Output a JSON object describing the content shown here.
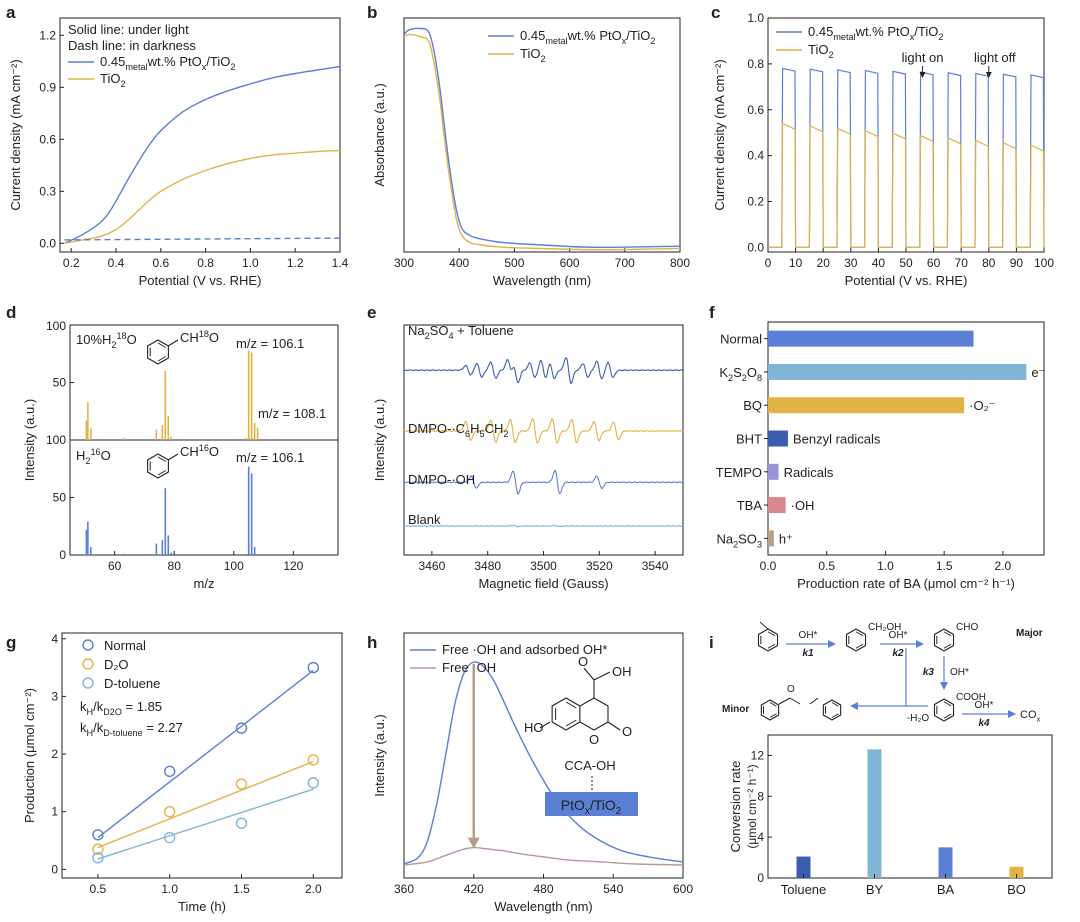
{
  "colors": {
    "blue": "#5b7fd4",
    "gold": "#e0b347",
    "light_blue": "#7fb6d5",
    "brown": "#b89a8e",
    "dark_blue": "#3a5db0",
    "pink": "#d9868c",
    "lavender": "#9b93d7",
    "tan": "#b79f8a",
    "red": "#d42020",
    "axis": "#222222"
  },
  "panel_labels": {
    "a": "a",
    "b": "b",
    "c": "c",
    "d": "d",
    "e": "e",
    "f": "f",
    "g": "g",
    "h": "h",
    "i": "i"
  },
  "chart_data": [
    {
      "panel": "a",
      "type": "line",
      "xlabel": "Potential (V vs. RHE)",
      "ylabel": "Current density (mA cm⁻²)",
      "xlim": [
        0.15,
        1.4
      ],
      "ylim": [
        -0.05,
        1.3
      ],
      "xticks": [
        0.2,
        0.4,
        0.6,
        0.8,
        1.0,
        1.2,
        1.4
      ],
      "yticks": [
        0.0,
        0.3,
        0.6,
        0.9,
        1.2
      ],
      "xtick_labels": [
        "0.2",
        "0.4",
        "0.6",
        "0.8",
        "1.0",
        "1.2",
        "1.4"
      ],
      "ytick_labels": [
        "0.0",
        "0.3",
        "0.6",
        "0.9",
        "1.2"
      ],
      "annotations": [
        "Solid line: under light",
        "Dash line: in darkness"
      ],
      "series": [
        {
          "name": "0.45metal wt.% PtOx/TiO2",
          "legend_main": "0.45",
          "legend_sub": "metal",
          "legend_rest": "wt.% PtO",
          "legend_sub2": "x",
          "legend_end": "/TiO",
          "legend_sub3": "2",
          "color": "blue",
          "style": "solid",
          "x": [
            0.17,
            0.25,
            0.33,
            0.38,
            0.45,
            0.5,
            0.55,
            0.6,
            0.7,
            0.8,
            0.9,
            1.0,
            1.1,
            1.2,
            1.3,
            1.4
          ],
          "y": [
            0.0,
            0.05,
            0.12,
            0.2,
            0.36,
            0.47,
            0.57,
            0.65,
            0.76,
            0.83,
            0.88,
            0.92,
            0.955,
            0.98,
            1.0,
            1.02
          ]
        },
        {
          "name": "TiO2",
          "legend_main": "TiO",
          "legend_sub": "2",
          "color": "gold",
          "style": "solid",
          "x": [
            0.17,
            0.25,
            0.33,
            0.4,
            0.45,
            0.5,
            0.55,
            0.6,
            0.7,
            0.8,
            0.9,
            1.0,
            1.1,
            1.2,
            1.3,
            1.4
          ],
          "y": [
            0.0,
            0.02,
            0.04,
            0.08,
            0.13,
            0.19,
            0.25,
            0.3,
            0.37,
            0.42,
            0.46,
            0.49,
            0.51,
            0.52,
            0.53,
            0.535
          ]
        },
        {
          "name": "dark",
          "color": "blue",
          "style": "dash",
          "x": [
            0.17,
            1.4
          ],
          "y": [
            0.02,
            0.03
          ]
        }
      ]
    },
    {
      "panel": "b",
      "type": "line",
      "xlabel": "Wavelength (nm)",
      "ylabel": "Absorbance (a.u.)",
      "xlim": [
        300,
        800
      ],
      "ylim": [
        0,
        1.0
      ],
      "xticks": [
        300,
        400,
        500,
        600,
        700,
        800
      ],
      "xtick_labels": [
        "300",
        "400",
        "500",
        "600",
        "700",
        "800"
      ],
      "series": [
        {
          "name": "0.45metal wt.% PtOx/TiO2",
          "legend_main": "0.45",
          "legend_sub": "metal",
          "legend_rest": "wt.% PtO",
          "legend_sub2": "x",
          "legend_end": "/TiO",
          "legend_sub3": "2",
          "color": "blue",
          "x": [
            300,
            310,
            330,
            345,
            355,
            365,
            375,
            385,
            395,
            405,
            420,
            440,
            480,
            550,
            650,
            800
          ],
          "y": [
            0.93,
            0.95,
            0.955,
            0.94,
            0.85,
            0.7,
            0.5,
            0.32,
            0.18,
            0.1,
            0.07,
            0.055,
            0.04,
            0.03,
            0.02,
            0.025
          ]
        },
        {
          "name": "TiO2",
          "legend_main": "TiO",
          "legend_sub": "2",
          "color": "gold",
          "x": [
            300,
            310,
            330,
            345,
            355,
            365,
            375,
            385,
            395,
            405,
            420,
            440,
            480,
            550,
            650,
            800
          ],
          "y": [
            0.92,
            0.93,
            0.92,
            0.9,
            0.8,
            0.65,
            0.45,
            0.28,
            0.14,
            0.07,
            0.04,
            0.03,
            0.02,
            0.015,
            0.01,
            0.015
          ]
        }
      ]
    },
    {
      "panel": "c",
      "type": "line",
      "xlabel": "Potential (V vs. RHE)",
      "ylabel": "Current density (mA cm⁻²)",
      "xlim": [
        0,
        100
      ],
      "ylim": [
        -0.02,
        1.0
      ],
      "xticks": [
        0,
        10,
        20,
        30,
        40,
        50,
        60,
        70,
        80,
        90,
        100
      ],
      "yticks": [
        0.0,
        0.2,
        0.4,
        0.6,
        0.8,
        1.0
      ],
      "xtick_labels": [
        "0",
        "10",
        "20",
        "30",
        "40",
        "50",
        "60",
        "70",
        "80",
        "90",
        "100"
      ],
      "ytick_labels": [
        "0.0",
        "0.2",
        "0.4",
        "0.6",
        "0.8",
        "1.0"
      ],
      "annotations": [
        "light on",
        "light off"
      ],
      "annotation_x": [
        56,
        80
      ],
      "pulse_on": [
        5,
        15,
        25,
        35,
        45,
        55,
        65,
        75,
        85,
        95
      ],
      "pulse_width": 4.8,
      "series": [
        {
          "name": "0.45metal wt.% PtOx/TiO2",
          "legend_main": "0.45",
          "legend_sub": "metal",
          "legend_rest": "wt.% PtO",
          "legend_sub2": "x",
          "legend_end": "/TiO",
          "legend_sub3": "2",
          "color": "blue",
          "x": [
            5,
            100
          ],
          "y": [
            0.77,
            0.74
          ]
        },
        {
          "name": "TiO2",
          "legend_main": "TiO",
          "legend_sub": "2",
          "color": "gold",
          "x": [
            5,
            100
          ],
          "y": [
            0.52,
            0.42
          ]
        }
      ]
    },
    {
      "panel": "d",
      "type": "bar",
      "xlabel": "m/z",
      "ylabel": "Intensity (a.u.)",
      "xlim": [
        45,
        135
      ],
      "ylim": [
        0,
        100
      ],
      "xticks": [
        60,
        80,
        100,
        120
      ],
      "xtick_labels": [
        "60",
        "80",
        "100",
        "120"
      ],
      "ytick_labels_top": [
        "100",
        "50",
        "100"
      ],
      "ytick_labels_bottom": [
        "50",
        "0"
      ],
      "annotations": [
        "m/z = 106.1",
        "m/z = 108.1",
        "m/z = 106.1"
      ],
      "top_label": {
        "pre": "10%H",
        "sub": "2",
        "sup": "18",
        "post": "O"
      },
      "bottom_label": {
        "pre": "H",
        "sub": "2",
        "sup": "16",
        "post": "O"
      },
      "top_struct_label": {
        "pre": "CH",
        "sup": "18",
        "post": "O"
      },
      "bottom_struct_label": {
        "pre": "CH",
        "sup": "16",
        "post": "O"
      },
      "series": [
        {
          "name": "10%H2 18O",
          "color": "gold",
          "x": [
            50.5,
            51.0,
            52.0,
            63.0,
            74.0,
            76.0,
            77.0,
            78.0,
            79.0,
            104.0,
            105.0,
            106.0,
            107.0,
            108.0
          ],
          "y": [
            17,
            33,
            10,
            2,
            9,
            13,
            60,
            21,
            3,
            2,
            78,
            76,
            15,
            11
          ]
        },
        {
          "name": "H2 16O",
          "color": "blue",
          "x": [
            50.5,
            51.0,
            52.0,
            63.0,
            74.0,
            76.0,
            77.0,
            78.0,
            79.0,
            105.0,
            106.0,
            107.0
          ],
          "y": [
            22,
            29,
            7,
            1,
            10,
            13,
            58,
            17,
            2,
            77,
            71,
            7
          ]
        }
      ]
    },
    {
      "panel": "e",
      "type": "line",
      "xlabel": "Magnetic field (Gauss)",
      "ylabel": "Intensity (a.u.)",
      "xlim": [
        3450,
        3550
      ],
      "xticks": [
        3460,
        3480,
        3500,
        3520,
        3540
      ],
      "xtick_labels": [
        "3460",
        "3480",
        "3500",
        "3520",
        "3540"
      ],
      "series_labels": [
        {
          "pre": "Na",
          "sub1": "2",
          "mid": "SO",
          "sub2": "4",
          "post": " + Toluene"
        },
        {
          "pre": "DMPO-·C",
          "sub1": "6",
          "mid": "H",
          "sub2": "5",
          "post": "CH",
          "sub3": "2"
        },
        {
          "pre": "DMPO-·OH"
        },
        {
          "pre": "Blank"
        }
      ],
      "series": [
        {
          "name": "Na2SO4 + Toluene",
          "color": "dark_blue",
          "baseline": 0.92,
          "lines_x": [
            3473,
            3477,
            3482,
            3488,
            3490,
            3496,
            3500,
            3503,
            3509,
            3515,
            3520,
            3524
          ],
          "lines_amp": [
            0.35,
            0.5,
            0.6,
            0.75,
            0.9,
            0.55,
            0.7,
            0.6,
            0.95,
            0.5,
            0.65,
            0.55
          ]
        },
        {
          "name": "DMPO-·C6H5CH2",
          "color": "gold",
          "baseline": 0.6,
          "lines_x": [
            3473,
            3482,
            3489,
            3497,
            3504,
            3511,
            3519,
            3526
          ],
          "lines_amp": [
            0.7,
            0.8,
            0.85,
            0.9,
            0.9,
            0.85,
            0.7,
            0.65
          ]
        },
        {
          "name": "DMPO-·OH",
          "color": "blue",
          "baseline": 0.33,
          "lines_x": [
            3475,
            3490,
            3505,
            3520
          ],
          "lines_amp": [
            0.45,
            0.85,
            0.85,
            0.45
          ]
        },
        {
          "name": "Blank",
          "color": "light_blue",
          "baseline": 0.1,
          "lines_x": [
            3490,
            3505
          ],
          "lines_amp": [
            0.04,
            0.03
          ]
        }
      ]
    },
    {
      "panel": "f",
      "type": "bar",
      "xlabel": "Production rate of BA (μmol cm⁻² h⁻¹)",
      "xlim": [
        0,
        2.35
      ],
      "xticks": [
        0.0,
        0.5,
        1.0,
        1.5,
        2.0
      ],
      "xtick_labels": [
        "0.0",
        "0.5",
        "1.0",
        "1.5",
        "2.0"
      ],
      "categories": [
        "Normal",
        "K2S2O8",
        "BQ",
        "BHT",
        "TEMPO",
        "TBA",
        "Na2SO3"
      ],
      "category_labels": [
        {
          "t": "Normal"
        },
        {
          "t": "K",
          "s1": "2",
          "t2": "S",
          "s2": "2",
          "t3": "O",
          "s3": "8"
        },
        {
          "t": "BQ"
        },
        {
          "t": "BHT"
        },
        {
          "t": "TEMPO"
        },
        {
          "t": "TBA"
        },
        {
          "t": "Na",
          "s1": "2",
          "t2": "SO",
          "s2": "3"
        }
      ],
      "values": [
        1.75,
        2.2,
        1.67,
        0.17,
        0.09,
        0.15,
        0.05
      ],
      "bar_colors": [
        "blue",
        "light_blue",
        "gold",
        "dark_blue",
        "lavender",
        "pink",
        "tan"
      ],
      "bar_labels": [
        "",
        "e⁻",
        "·O₂⁻",
        "Benzyl radicals",
        "Radicals",
        "·OH",
        "h⁺"
      ]
    },
    {
      "panel": "g",
      "type": "scatter",
      "xlabel": "Time (h)",
      "ylabel": "Production (μmol cm⁻²)",
      "xlim": [
        0.25,
        2.2
      ],
      "ylim": [
        -0.15,
        4.1
      ],
      "xticks": [
        0.5,
        1.0,
        1.5,
        2.0
      ],
      "yticks": [
        0,
        1,
        2,
        3,
        4
      ],
      "xtick_labels": [
        "0.5",
        "1.0",
        "1.5",
        "2.0"
      ],
      "ytick_labels": [
        "0",
        "1",
        "2",
        "3",
        "4"
      ],
      "annotations": [
        {
          "pre": "k",
          "sub1": "H",
          "mid": "/k",
          "sub2": "D2O",
          "post": " = 1.85",
          "color": "gold"
        },
        {
          "pre": "k",
          "sub1": "H",
          "mid": "/k",
          "sub2": "D-toluene",
          "post": " = 2.27",
          "color": "light_blue"
        }
      ],
      "series": [
        {
          "name": "Normal",
          "color": "blue",
          "x": [
            0.5,
            1.0,
            1.5,
            2.0
          ],
          "y": [
            0.6,
            1.7,
            2.45,
            3.5
          ],
          "fit": [
            0.55,
            3.45
          ]
        },
        {
          "name": "D₂O",
          "color": "gold",
          "x": [
            0.5,
            1.0,
            1.5,
            2.0
          ],
          "y": [
            0.35,
            1.0,
            1.48,
            1.9
          ],
          "fit": [
            0.38,
            1.87
          ]
        },
        {
          "name": "D-toluene",
          "color": "light_blue",
          "x": [
            0.5,
            1.0,
            1.5,
            2.0
          ],
          "y": [
            0.2,
            0.55,
            0.8,
            1.5
          ],
          "fit": [
            0.18,
            1.39
          ]
        }
      ]
    },
    {
      "panel": "h",
      "type": "line",
      "xlabel": "Wavelength (nm)",
      "ylabel": "Intensity (a.u.)",
      "xlim": [
        360,
        600
      ],
      "ylim": [
        0,
        1.0
      ],
      "xticks": [
        360,
        420,
        480,
        540,
        600
      ],
      "xtick_labels": [
        "360",
        "420",
        "480",
        "540",
        "600"
      ],
      "inset_label": {
        "pre": "PtO",
        "sub1": "x",
        "mid": "/TiO",
        "sub2": "2"
      },
      "molecule_labels": [
        "HO",
        "O",
        "O",
        "OH",
        "O",
        "CCA-OH"
      ],
      "series": [
        {
          "name": "Free ·OH and adsorbed OH*",
          "color": "blue",
          "x": [
            360,
            372,
            380,
            388,
            396,
            404,
            412,
            420,
            428,
            436,
            444,
            456,
            472,
            490,
            510,
            530,
            550,
            575,
            600
          ],
          "y": [
            0.01,
            0.04,
            0.12,
            0.3,
            0.55,
            0.8,
            0.95,
            1.0,
            0.98,
            0.92,
            0.83,
            0.68,
            0.5,
            0.33,
            0.2,
            0.12,
            0.07,
            0.04,
            0.02
          ]
        },
        {
          "name": "Free ·OH",
          "color": "brown",
          "x": [
            360,
            380,
            395,
            410,
            420,
            430,
            445,
            460,
            480,
            500,
            530,
            560,
            600
          ],
          "y": [
            0.005,
            0.02,
            0.05,
            0.08,
            0.09,
            0.085,
            0.075,
            0.06,
            0.045,
            0.03,
            0.02,
            0.01,
            0.005
          ]
        }
      ]
    },
    {
      "panel": "i",
      "type": "bar",
      "ylabel": "Conversion rate (μmol cm⁻² h⁻¹)",
      "ylabel_line1": "Conversion rate",
      "ylabel_line2": "(μmol cm⁻² h⁻¹)",
      "ylim": [
        0,
        14
      ],
      "yticks": [
        0,
        4,
        8,
        12
      ],
      "ytick_labels": [
        "0",
        "4",
        "8",
        "12"
      ],
      "categories": [
        "Toluene",
        "BY",
        "BA",
        "BO"
      ],
      "values": [
        2.1,
        12.6,
        3.0,
        1.1
      ],
      "bar_colors": [
        "dark_blue",
        "light_blue",
        "blue",
        "gold"
      ],
      "scheme": {
        "major": "Major",
        "minor": "Minor",
        "oh": "OH*",
        "ch2oh": "CH₂OH",
        "cho": "CHO",
        "cooh": "COOH",
        "k1": "k1",
        "k2": "k2",
        "k3": "k3",
        "k4": "k4",
        "h2o": "-H₂O",
        "cox": {
          "pre": "CO",
          "sub": "x"
        }
      }
    }
  ]
}
